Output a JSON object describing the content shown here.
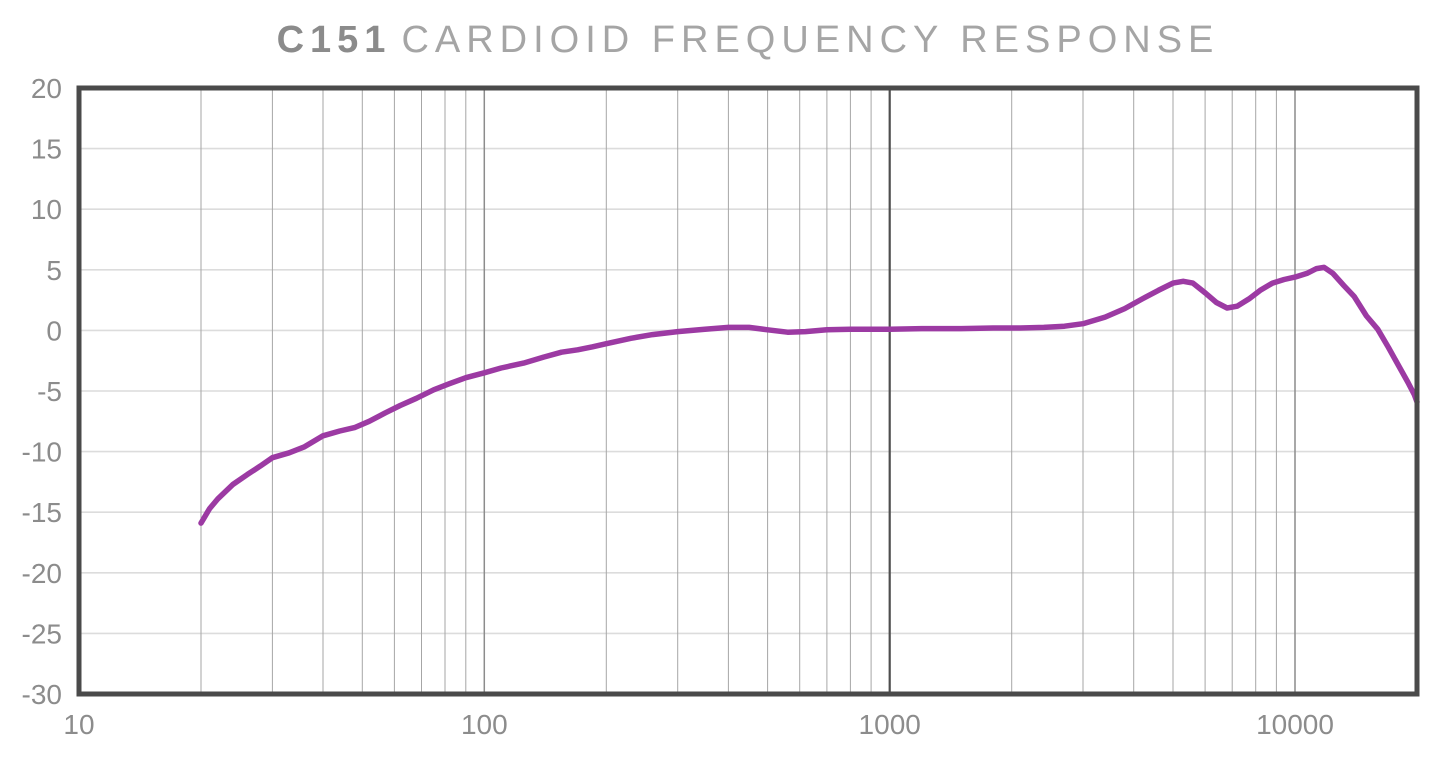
{
  "title": {
    "model": "C151",
    "rest": "CARDIOID FREQUENCY RESPONSE"
  },
  "colors": {
    "background": "#ffffff",
    "frame": "#4a4a4a",
    "h_gridline": "#dcdcdc",
    "v_gridline_minor": "#a6a6a6",
    "v_gridline_decade": "#8c8c8c",
    "v_gridline_1k": "#4f4f4f",
    "curve": "#9c3aa3",
    "tick_label": "#8c8c8c",
    "title_model": "#8b8b8b",
    "title_rest": "#a5a5a5"
  },
  "chart_data": {
    "type": "line",
    "title": "C151 CARDIOID FREQUENCY RESPONSE",
    "xlabel": "",
    "ylabel": "",
    "x_scale": "log",
    "xlim": [
      10,
      20000
    ],
    "ylim": [
      -30,
      20
    ],
    "x_ticks": [
      10,
      100,
      1000,
      10000
    ],
    "x_tick_labels": [
      "10",
      "100",
      "1000",
      "10000"
    ],
    "y_ticks": [
      20,
      15,
      10,
      5,
      0,
      -5,
      -10,
      -15,
      -20,
      -25,
      -30
    ],
    "y_tick_labels": [
      "20",
      "15",
      "10",
      "5",
      "0",
      "-5",
      "-10",
      "-15",
      "-20",
      "-25",
      "-30"
    ],
    "grid": true,
    "legend": "none",
    "series": [
      {
        "name": "cardioid frequency response",
        "color": "#9c3aa3",
        "points": [
          [
            20,
            -15.9
          ],
          [
            21,
            -14.7
          ],
          [
            22,
            -13.9
          ],
          [
            24,
            -12.7
          ],
          [
            26,
            -11.9
          ],
          [
            28,
            -11.2
          ],
          [
            30,
            -10.5
          ],
          [
            33,
            -10.1
          ],
          [
            36,
            -9.6
          ],
          [
            40,
            -8.7
          ],
          [
            44,
            -8.3
          ],
          [
            48,
            -8.0
          ],
          [
            52,
            -7.5
          ],
          [
            57,
            -6.8
          ],
          [
            62,
            -6.2
          ],
          [
            68,
            -5.6
          ],
          [
            75,
            -4.9
          ],
          [
            82,
            -4.4
          ],
          [
            90,
            -3.9
          ],
          [
            100,
            -3.5
          ],
          [
            110,
            -3.1
          ],
          [
            125,
            -2.7
          ],
          [
            140,
            -2.2
          ],
          [
            155,
            -1.8
          ],
          [
            170,
            -1.6
          ],
          [
            185,
            -1.35
          ],
          [
            200,
            -1.1
          ],
          [
            230,
            -0.65
          ],
          [
            260,
            -0.35
          ],
          [
            300,
            -0.1
          ],
          [
            350,
            0.1
          ],
          [
            400,
            0.25
          ],
          [
            450,
            0.25
          ],
          [
            500,
            0.05
          ],
          [
            560,
            -0.15
          ],
          [
            620,
            -0.1
          ],
          [
            700,
            0.05
          ],
          [
            800,
            0.1
          ],
          [
            900,
            0.1
          ],
          [
            1000,
            0.1
          ],
          [
            1200,
            0.15
          ],
          [
            1500,
            0.15
          ],
          [
            1800,
            0.2
          ],
          [
            2100,
            0.2
          ],
          [
            2400,
            0.25
          ],
          [
            2700,
            0.35
          ],
          [
            3000,
            0.55
          ],
          [
            3400,
            1.1
          ],
          [
            3800,
            1.8
          ],
          [
            4200,
            2.6
          ],
          [
            4600,
            3.3
          ],
          [
            5000,
            3.9
          ],
          [
            5300,
            4.05
          ],
          [
            5600,
            3.9
          ],
          [
            6000,
            3.1
          ],
          [
            6400,
            2.3
          ],
          [
            6800,
            1.85
          ],
          [
            7200,
            2.0
          ],
          [
            7700,
            2.6
          ],
          [
            8200,
            3.3
          ],
          [
            8800,
            3.9
          ],
          [
            9400,
            4.2
          ],
          [
            10000,
            4.4
          ],
          [
            10700,
            4.7
          ],
          [
            11300,
            5.1
          ],
          [
            11800,
            5.2
          ],
          [
            12400,
            4.7
          ],
          [
            13200,
            3.7
          ],
          [
            14000,
            2.8
          ],
          [
            15000,
            1.2
          ],
          [
            16000,
            0.1
          ],
          [
            17000,
            -1.4
          ],
          [
            18000,
            -2.9
          ],
          [
            19000,
            -4.3
          ],
          [
            19700,
            -5.3
          ],
          [
            20000,
            -5.9
          ]
        ]
      }
    ]
  }
}
